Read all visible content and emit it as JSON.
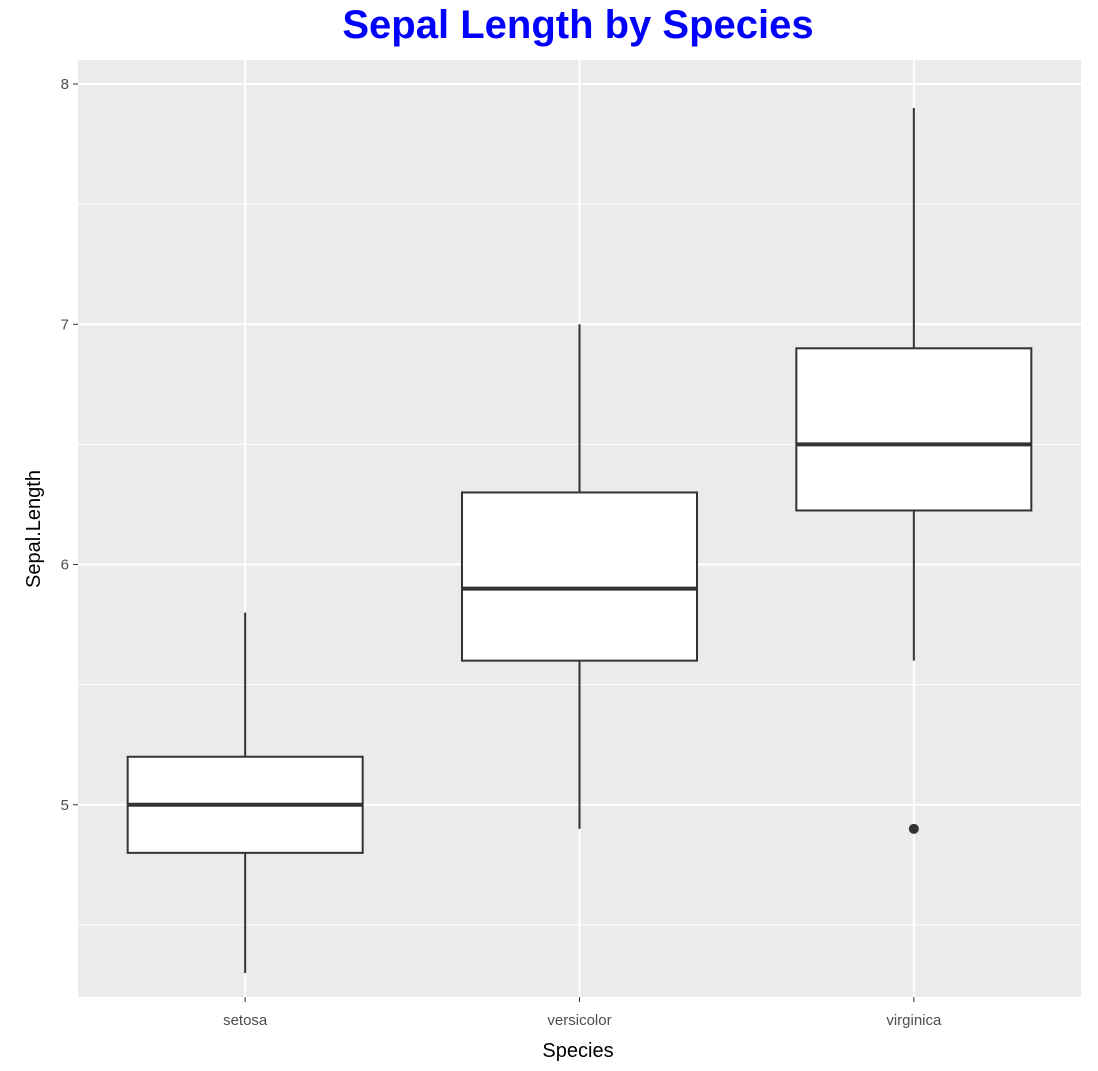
{
  "chart_data": {
    "type": "boxplot",
    "title": "Sepal Length by Species",
    "xlabel": "Species",
    "ylabel": "Sepal.Length",
    "ylim": [
      4.2,
      8.1
    ],
    "y_ticks": [
      5,
      6,
      7,
      8
    ],
    "y_tick_labels": [
      "5",
      "6",
      "7",
      "8"
    ],
    "y_minor_ticks": [
      4.5,
      5.5,
      6.5,
      7.5
    ],
    "grid": true,
    "categories": [
      "setosa",
      "versicolor",
      "virginica"
    ],
    "boxes": [
      {
        "category": "setosa",
        "whisker_low": 4.3,
        "q1": 4.8,
        "median": 5.0,
        "q3": 5.2,
        "whisker_high": 5.8,
        "outliers": []
      },
      {
        "category": "versicolor",
        "whisker_low": 4.9,
        "q1": 5.6,
        "median": 5.9,
        "q3": 6.3,
        "whisker_high": 7.0,
        "outliers": []
      },
      {
        "category": "virginica",
        "whisker_low": 5.6,
        "q1": 6.225,
        "median": 6.5,
        "q3": 6.9,
        "whisker_high": 7.9,
        "outliers": [
          4.9
        ]
      }
    ]
  },
  "colors": {
    "title": "#0000ff",
    "panel_background": "#ebebeb",
    "grid": "#ffffff",
    "box_fill": "#ffffff",
    "box_stroke": "#333333",
    "outlier": "#333333"
  }
}
